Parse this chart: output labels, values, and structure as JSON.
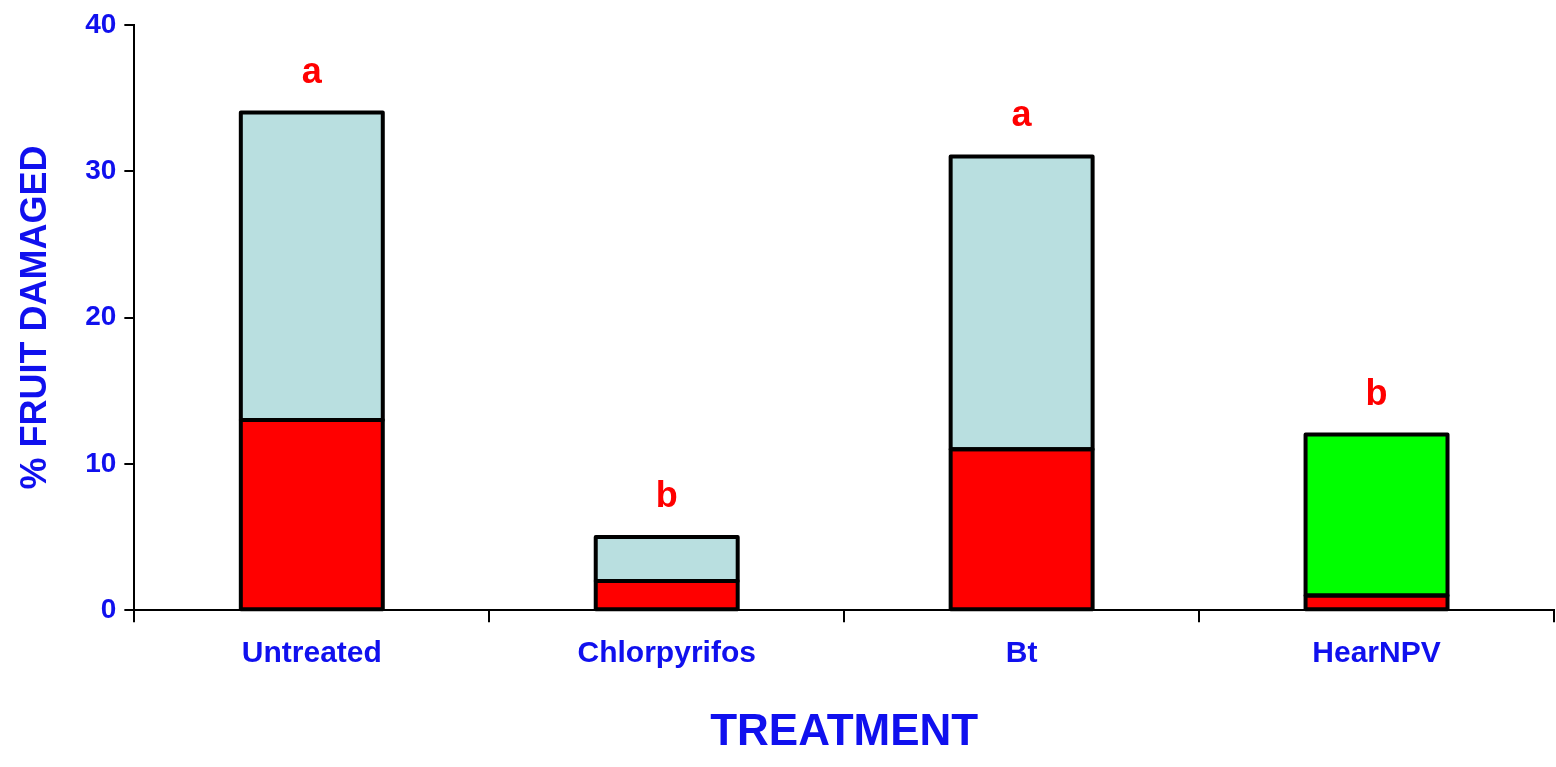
{
  "chart_data": {
    "type": "bar",
    "stacked": true,
    "xlabel": "TREATMENT",
    "ylabel": "% FRUIT DAMAGED",
    "categories": [
      "Untreated",
      "Chlorpyrifos",
      "Bt",
      "HearNPV"
    ],
    "series": [
      {
        "values": [
          13,
          2,
          11,
          1
        ],
        "color": "#ff0000"
      },
      {
        "values": [
          21,
          3,
          20,
          11
        ],
        "colors": [
          "#b9dfe0",
          "#b9dfe0",
          "#b9dfe0",
          "#00ff00"
        ]
      }
    ],
    "ylim": [
      0,
      40
    ],
    "yticks": [
      0,
      10,
      20,
      30,
      40
    ],
    "grid": false,
    "legend": false,
    "annotations": [
      "a",
      "b",
      "a",
      "b"
    ]
  }
}
